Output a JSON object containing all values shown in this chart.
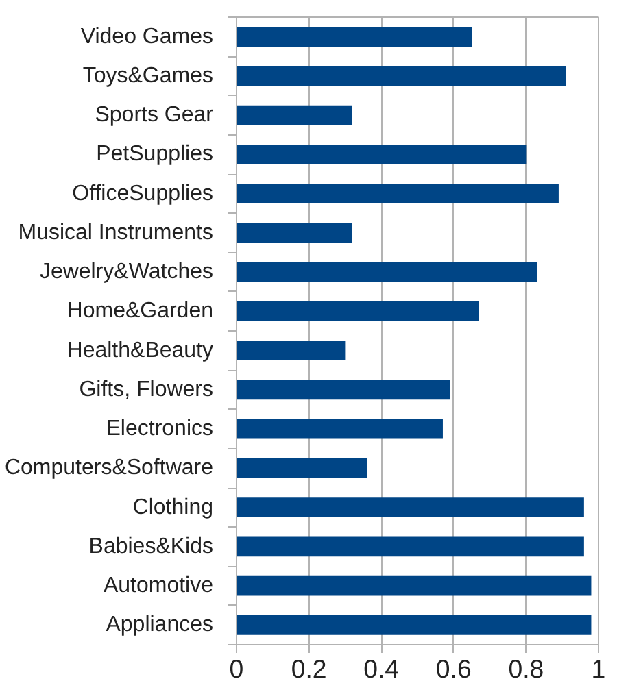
{
  "chart_data": {
    "type": "bar",
    "orientation": "horizontal",
    "categories": [
      "Video Games",
      "Toys&Games",
      "Sports Gear",
      "PetSupplies",
      "OfficeSupplies",
      "Musical Instruments",
      "Jewelry&Watches",
      "Home&Garden",
      "Health&Beauty",
      "Gifts, Flowers",
      "Electronics",
      "Computers&Software",
      "Clothing",
      "Babies&Kids",
      "Automotive",
      "Appliances"
    ],
    "values": [
      0.65,
      0.91,
      0.32,
      0.8,
      0.89,
      0.32,
      0.83,
      0.67,
      0.3,
      0.59,
      0.57,
      0.36,
      0.96,
      0.96,
      0.98,
      0.98
    ],
    "color": "#004586",
    "xlim": [
      0,
      1
    ],
    "xticks": [
      0,
      0.2,
      0.4,
      0.6,
      0.8,
      1
    ],
    "grid": "x"
  }
}
